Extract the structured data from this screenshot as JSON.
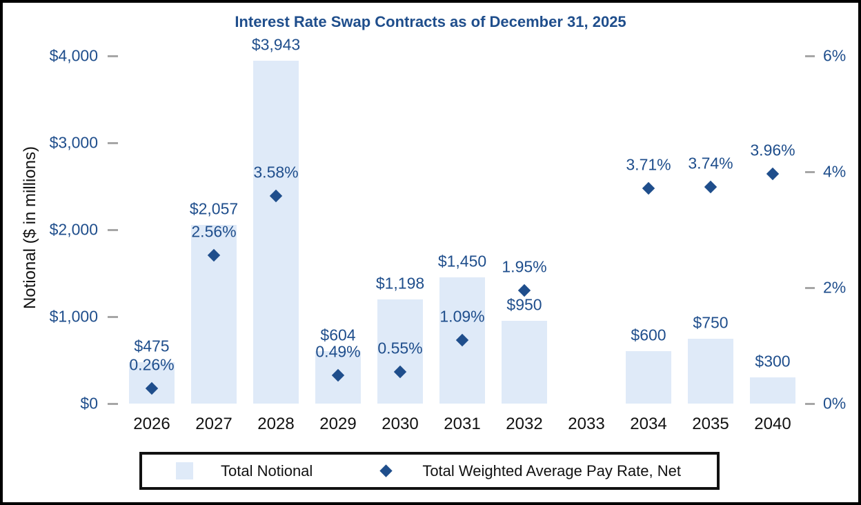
{
  "title": "Interest Rate Swap Contracts as of December 31, 2025",
  "colors": {
    "bar_fill": "#DFEAF8",
    "marker": "#1F4E8C",
    "value_text": "#1F4E8C",
    "axis_tick_text": "#1F4E8C",
    "category_text": "#111111",
    "tick_dash": "#A6A6A6",
    "border": "#000000"
  },
  "chart_data": {
    "type": "combo-bar-scatter",
    "title": "Interest Rate Swap Contracts as of December 31, 2025",
    "categories": [
      "2026",
      "2027",
      "2028",
      "2029",
      "2030",
      "2031",
      "2032",
      "2033",
      "2034",
      "2035",
      "2040"
    ],
    "series": [
      {
        "name": "Total Notional",
        "type": "bar",
        "axis": "left",
        "color": "#DFEAF8",
        "values": [
          475,
          2057,
          3943,
          604,
          1198,
          1450,
          950,
          null,
          600,
          750,
          300
        ],
        "labels": [
          "$475",
          "$2,057",
          "$3,943",
          "$604",
          "$1,198",
          "$1,450",
          "$950",
          null,
          "$600",
          "$750",
          "$300"
        ]
      },
      {
        "name": "Total Weighted Average Pay Rate, Net",
        "type": "scatter",
        "marker": "diamond",
        "axis": "right",
        "color": "#1F4E8C",
        "values": [
          0.26,
          2.56,
          3.58,
          0.49,
          0.55,
          1.09,
          1.95,
          null,
          3.71,
          3.74,
          3.96
        ],
        "labels": [
          "0.26%",
          "2.56%",
          "3.58%",
          "0.49%",
          "0.55%",
          "1.09%",
          "1.95%",
          null,
          "3.71%",
          "3.74%",
          "3.96%"
        ]
      }
    ],
    "left_axis": {
      "title": "Notional ($ in millions)",
      "min": 0,
      "max": 4000,
      "tick_labels": [
        "$0",
        "$1,000",
        "$2,000",
        "$3,000",
        "$4,000"
      ]
    },
    "right_axis": {
      "min": 0,
      "max": 6,
      "tick_labels": [
        "0%",
        "2%",
        "4%",
        "6%"
      ]
    },
    "grid": false,
    "legend_position": "bottom"
  }
}
